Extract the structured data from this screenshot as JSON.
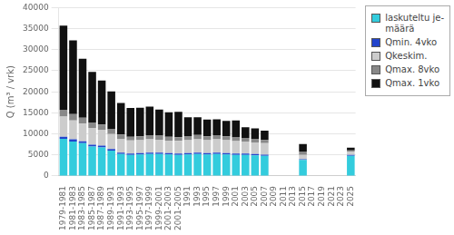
{
  "chart_data": {
    "type": "bar",
    "stacked": true,
    "ylabel": "Q (m³ / vrk)",
    "categories": [
      "1979-1981",
      "1981-1983",
      "1983-1985",
      "1985-1987",
      "1987-1989",
      "1989-1991",
      "1991-1993",
      "1993-1995",
      "1995-1997",
      "1997-1999",
      "1999-2001",
      "2001-2003",
      "2001-2005",
      "1991",
      "1993",
      "1995",
      "1997",
      "1999",
      "2001",
      "2003",
      "2005",
      "2007",
      "2009",
      "2011",
      "2013",
      "2015",
      "2017",
      "2019",
      "2021",
      "2023",
      "2025"
    ],
    "series": [
      {
        "name": "laskuteltu je-\nmäärä",
        "color": "#33ccdd",
        "values": [
          8800,
          8200,
          7800,
          7000,
          6800,
          6000,
          5200,
          5000,
          5100,
          5200,
          5200,
          5100,
          5000,
          5100,
          5200,
          5100,
          5200,
          5100,
          5000,
          5000,
          4900,
          4800,
          0,
          0,
          0,
          3800,
          0,
          0,
          0,
          0,
          4800
        ]
      },
      {
        "name": "Qmin. 4vko",
        "color": "#2244cc",
        "values": [
          500,
          500,
          450,
          420,
          400,
          380,
          350,
          330,
          320,
          330,
          330,
          320,
          320,
          320,
          330,
          310,
          320,
          310,
          300,
          300,
          290,
          280,
          0,
          0,
          0,
          200,
          0,
          0,
          0,
          0,
          200
        ]
      },
      {
        "name": "Qkeskim.",
        "color": "#cccccc",
        "values": [
          4800,
          4500,
          4200,
          4000,
          3800,
          3600,
          3300,
          3100,
          3100,
          3200,
          3100,
          3000,
          3000,
          3100,
          3200,
          3100,
          3200,
          3100,
          3000,
          2900,
          2800,
          2700,
          0,
          0,
          0,
          1000,
          0,
          0,
          0,
          0,
          800
        ]
      },
      {
        "name": "Qmax. 8vko",
        "color": "#888888",
        "values": [
          1600,
          1500,
          1400,
          1300,
          1200,
          1100,
          1000,
          900,
          900,
          950,
          950,
          900,
          900,
          950,
          1000,
          900,
          950,
          900,
          870,
          850,
          830,
          800,
          0,
          0,
          0,
          800,
          0,
          0,
          0,
          0,
          300
        ]
      },
      {
        "name": "Qmax. 1vko",
        "color": "#111111",
        "values": [
          20000,
          17500,
          14000,
          12000,
          10500,
          9000,
          7500,
          6800,
          6800,
          6800,
          6200,
          5800,
          6000,
          4500,
          4200,
          4000,
          3800,
          3700,
          4000,
          2500,
          2500,
          2200,
          0,
          0,
          0,
          1800,
          0,
          0,
          0,
          0,
          600
        ]
      }
    ],
    "ylim": [
      0,
      40000
    ],
    "yticks": [
      0,
      5000,
      10000,
      15000,
      20000,
      25000,
      30000,
      35000,
      40000
    ],
    "grid": true,
    "legend": "upper right"
  }
}
